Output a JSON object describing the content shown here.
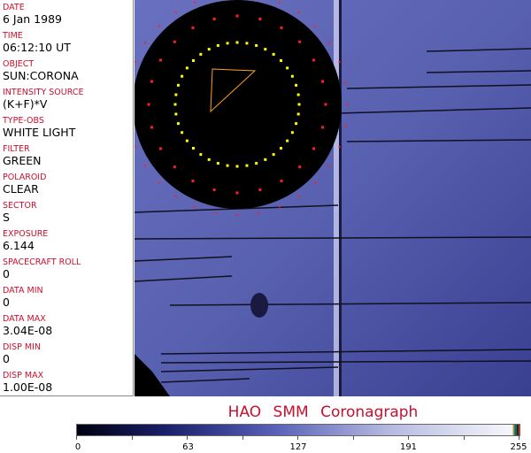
{
  "fields": [
    {
      "label": "DATE",
      "value": "6 Jan 1989"
    },
    {
      "label": "TIME",
      "value": "06:12:10 UT"
    },
    {
      "label": "OBJECT",
      "value": "SUN:CORONA"
    },
    {
      "label": "INTENSITY SOURCE",
      "value": "(K+F)*V"
    },
    {
      "label": "TYPE-OBS",
      "value": "WHITE LIGHT"
    },
    {
      "label": "FILTER",
      "value": "GREEN"
    },
    {
      "label": "POLAROID",
      "value": "CLEAR"
    },
    {
      "label": "SECTOR",
      "value": "S"
    },
    {
      "label": "EXPOSURE",
      "value": "6.144"
    },
    {
      "label": "SPACECRAFT ROLL",
      "value": "0"
    },
    {
      "label": "DATA MIN",
      "value": "0"
    },
    {
      "label": "DATA MAX",
      "value": "3.04E-08"
    },
    {
      "label": "DISP MIN",
      "value": "0"
    },
    {
      "label": "DISP MAX",
      "value": "1.00E-08"
    }
  ],
  "title": "HAO   SMM  Coronagraph",
  "colorbar": {
    "ticks": [
      "0",
      "63",
      "127",
      "191",
      "255"
    ],
    "min": 0,
    "max": 255,
    "colors": [
      "#000010",
      "#5a62b8",
      "#f4f4fa"
    ]
  },
  "colors": {
    "label": "#c8102e",
    "marker_red": "#ff2020",
    "marker_yellow": "#ffff00",
    "triangle": "#ffa020"
  }
}
